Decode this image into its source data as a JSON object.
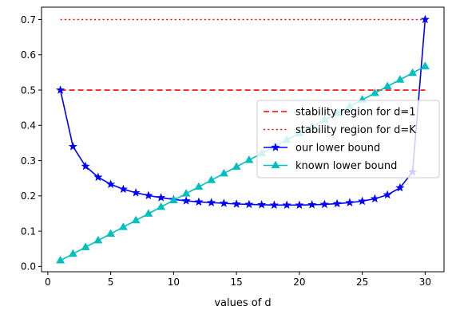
{
  "chart_data": {
    "type": "line",
    "title": "",
    "xlabel": "values of d",
    "ylabel": "",
    "xlim": [
      -0.5,
      31.5
    ],
    "ylim": [
      -0.015,
      0.735
    ],
    "xticks": [
      0,
      5,
      10,
      15,
      20,
      25,
      30
    ],
    "yticks": [
      0.0,
      0.1,
      0.2,
      0.3,
      0.4,
      0.5,
      0.6,
      0.7
    ],
    "xtick_labels": [
      "0",
      "5",
      "10",
      "15",
      "20",
      "25",
      "30"
    ],
    "ytick_labels": [
      "0.0",
      "0.1",
      "0.2",
      "0.3",
      "0.4",
      "0.5",
      "0.6",
      "0.7"
    ],
    "grid": false,
    "legend_position": "center-right",
    "series": [
      {
        "name": "stability region for d=1",
        "color": "#ff0000",
        "style": "dashed",
        "marker": "none",
        "x": [
          1,
          30
        ],
        "y": [
          0.5,
          0.5
        ]
      },
      {
        "name": "stability region for d=K",
        "color": "#ff0000",
        "style": "dotted",
        "marker": "none",
        "x": [
          1,
          30
        ],
        "y": [
          0.7,
          0.7
        ]
      },
      {
        "name": "our lower bound",
        "color": "#0000ff",
        "style": "solid",
        "marker": "star",
        "x": [
          1,
          2,
          3,
          4,
          5,
          6,
          7,
          8,
          9,
          10,
          11,
          12,
          13,
          14,
          15,
          16,
          17,
          18,
          19,
          20,
          21,
          22,
          23,
          24,
          25,
          26,
          27,
          28,
          29,
          30
        ],
        "y": [
          0.5,
          0.34,
          0.284,
          0.253,
          0.233,
          0.219,
          0.209,
          0.201,
          0.195,
          0.19,
          0.186,
          0.183,
          0.181,
          0.179,
          0.177,
          0.176,
          0.175,
          0.174,
          0.174,
          0.174,
          0.175,
          0.176,
          0.178,
          0.181,
          0.185,
          0.192,
          0.203,
          0.223,
          0.268,
          0.7
        ]
      },
      {
        "name": "known lower bound",
        "color": "#00bfbf",
        "style": "solid",
        "marker": "triangle",
        "x": [
          1,
          2,
          3,
          4,
          5,
          6,
          7,
          8,
          9,
          10,
          11,
          12,
          13,
          14,
          15,
          16,
          17,
          18,
          19,
          20,
          21,
          22,
          23,
          24,
          25,
          26,
          27,
          28,
          29,
          30
        ],
        "y": [
          0.017,
          0.0357,
          0.0547,
          0.0737,
          0.0927,
          0.1116,
          0.1306,
          0.1496,
          0.1686,
          0.1876,
          0.2066,
          0.2256,
          0.2446,
          0.2636,
          0.2826,
          0.3016,
          0.3205,
          0.3395,
          0.3585,
          0.3775,
          0.3965,
          0.4155,
          0.4345,
          0.4535,
          0.4725,
          0.4915,
          0.5105,
          0.5294,
          0.5484,
          0.5674
        ]
      }
    ]
  }
}
